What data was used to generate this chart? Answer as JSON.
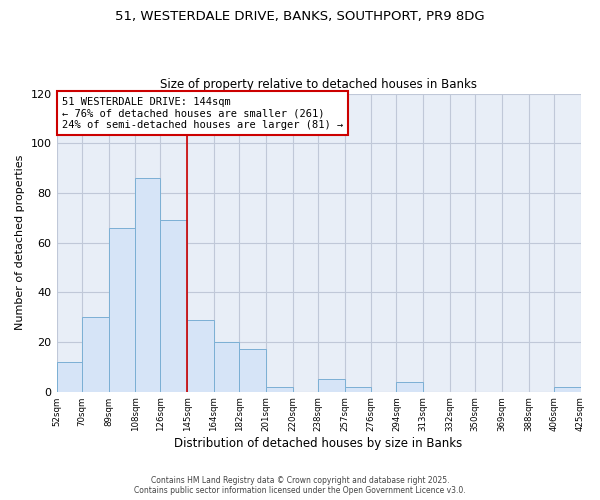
{
  "title1": "51, WESTERDALE DRIVE, BANKS, SOUTHPORT, PR9 8DG",
  "title2": "Size of property relative to detached houses in Banks",
  "xlabel": "Distribution of detached houses by size in Banks",
  "ylabel": "Number of detached properties",
  "bin_edges": [
    52,
    70,
    89,
    108,
    126,
    145,
    164,
    182,
    201,
    220,
    238,
    257,
    276,
    294,
    313,
    332,
    350,
    369,
    388,
    406,
    425
  ],
  "bin_heights": [
    12,
    30,
    66,
    86,
    69,
    29,
    20,
    17,
    2,
    0,
    5,
    2,
    0,
    4,
    0,
    0,
    0,
    0,
    0,
    2
  ],
  "bar_facecolor": "#d6e4f7",
  "bar_edgecolor": "#7bafd4",
  "vline_x": 145,
  "vline_color": "#cc0000",
  "ylim": [
    0,
    120
  ],
  "yticks": [
    0,
    20,
    40,
    60,
    80,
    100,
    120
  ],
  "annotation_title": "51 WESTERDALE DRIVE: 144sqm",
  "annotation_line1": "← 76% of detached houses are smaller (261)",
  "annotation_line2": "24% of semi-detached houses are larger (81) →",
  "annotation_box_edgecolor": "#cc0000",
  "background_color": "#ffffff",
  "plot_bg_color": "#e8eef7",
  "grid_color": "#c0c8d8",
  "footnote1": "Contains HM Land Registry data © Crown copyright and database right 2025.",
  "footnote2": "Contains public sector information licensed under the Open Government Licence v3.0.",
  "tick_labels": [
    "52sqm",
    "70sqm",
    "89sqm",
    "108sqm",
    "126sqm",
    "145sqm",
    "164sqm",
    "182sqm",
    "201sqm",
    "220sqm",
    "238sqm",
    "257sqm",
    "276sqm",
    "294sqm",
    "313sqm",
    "332sqm",
    "350sqm",
    "369sqm",
    "388sqm",
    "406sqm",
    "425sqm"
  ]
}
